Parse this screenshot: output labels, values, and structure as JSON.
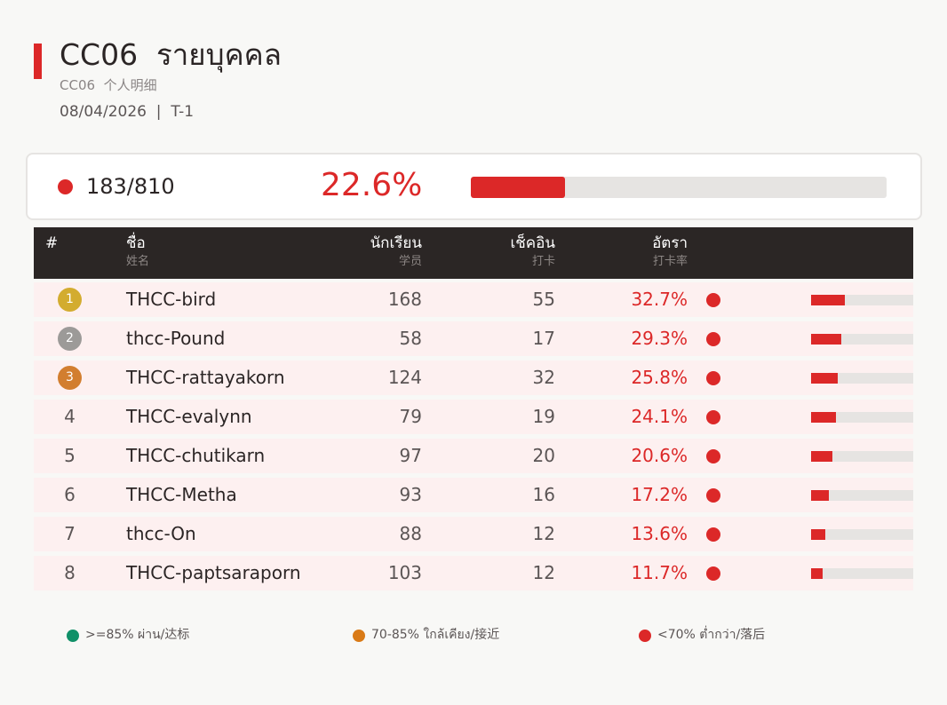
{
  "header": {
    "title": "CC06  รายบุคคล",
    "subtitle": "CC06  个人明细",
    "dateline": "08/04/2026  |  T-1"
  },
  "summary": {
    "count": "183/810",
    "percent": "22.6%",
    "progress": 0.226,
    "status_color": "#dc2828"
  },
  "table": {
    "columns": {
      "rank": "#",
      "name": "ชื่อ",
      "name_sub": "姓名",
      "students": "นักเรียน",
      "students_sub": "学员",
      "checkins": "เช็คอิน",
      "checkins_sub": "打卡",
      "rate": "อัตรา",
      "rate_sub": "打卡率"
    },
    "rows": [
      {
        "rank": "1",
        "medal": "gold",
        "name": "THCC-bird",
        "students": "168",
        "checkins": "55",
        "rate": "32.7%",
        "rate_value": 0.327
      },
      {
        "rank": "2",
        "medal": "silver",
        "name": "thcc-Pound",
        "students": "58",
        "checkins": "17",
        "rate": "29.3%",
        "rate_value": 0.293
      },
      {
        "rank": "3",
        "medal": "bronze",
        "name": "THCC-rattayakorn",
        "students": "124",
        "checkins": "32",
        "rate": "25.8%",
        "rate_value": 0.258
      },
      {
        "rank": "4",
        "medal": "",
        "name": "THCC-evalynn",
        "students": "79",
        "checkins": "19",
        "rate": "24.1%",
        "rate_value": 0.241
      },
      {
        "rank": "5",
        "medal": "",
        "name": "THCC-chutikarn",
        "students": "97",
        "checkins": "20",
        "rate": "20.6%",
        "rate_value": 0.206
      },
      {
        "rank": "6",
        "medal": "",
        "name": "THCC-Metha",
        "students": "93",
        "checkins": "16",
        "rate": "17.2%",
        "rate_value": 0.172
      },
      {
        "rank": "7",
        "medal": "",
        "name": "thcc-On",
        "students": "88",
        "checkins": "12",
        "rate": "13.6%",
        "rate_value": 0.136
      },
      {
        "rank": "8",
        "medal": "",
        "name": "THCC-paptsaraporn",
        "students": "103",
        "checkins": "12",
        "rate": "11.7%",
        "rate_value": 0.117
      }
    ]
  },
  "legend": [
    {
      "label": ">=85% ผ่าน/达标",
      "color": "#109068"
    },
    {
      "label": "70-85% ใกล้เคียง/接近",
      "color": "#d97a16"
    },
    {
      "label": "<70% ต่ำกว่า/落后",
      "color": "#dc2828"
    }
  ],
  "colors": {
    "accent": "#dc2828",
    "low": "#dc2828",
    "gold": "#d3ac2f",
    "silver": "#9c9a98",
    "bronze": "#d27e2f"
  }
}
